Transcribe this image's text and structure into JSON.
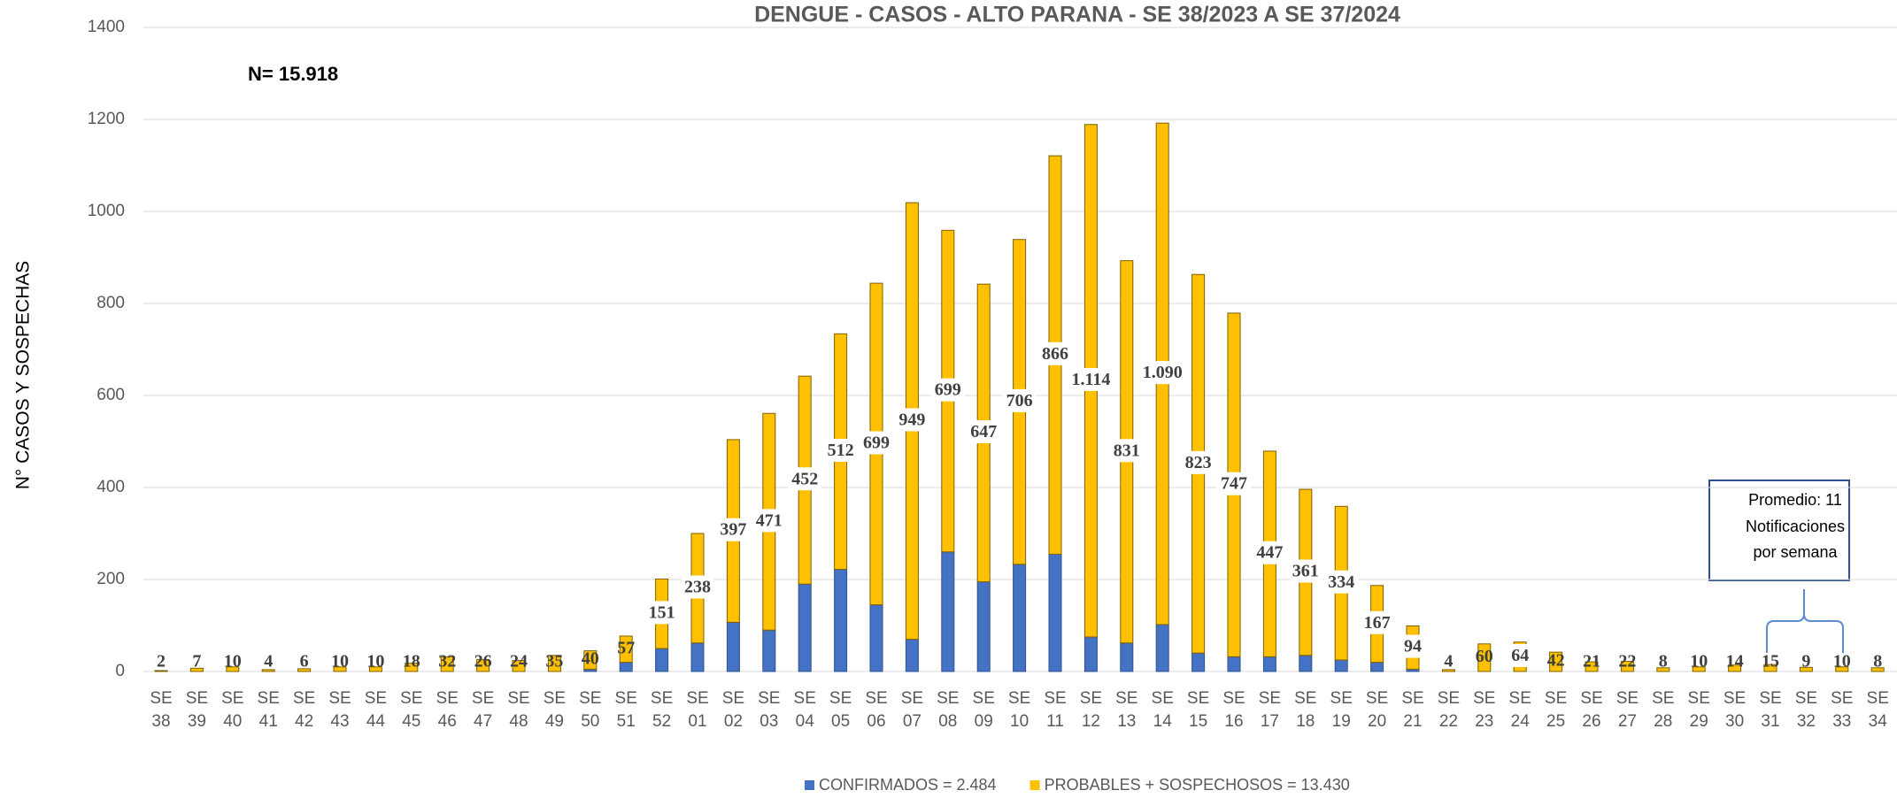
{
  "chart_data": {
    "type": "stacked_bar",
    "title": "DENGUE - CASOS - ALTO PARANA - SE 38/2023 A SE 37/2024",
    "y_label": "N° CASOS Y SOSPECHAS",
    "annotations": [
      "N= 15.918",
      "Promedio:  11",
      "Notificaciones",
      "por semana"
    ],
    "categories": [
      "SE 38",
      "SE 39",
      "SE 40",
      "SE 41",
      "SE 42",
      "SE 43",
      "SE 44",
      "SE 45",
      "SE 46",
      "SE 47",
      "SE 48",
      "SE 49",
      "SE 50",
      "SE 51",
      "SE 52",
      "SE 01",
      "SE 02",
      "SE 03",
      "SE 04",
      "SE 05",
      "SE 06",
      "SE 07",
      "SE 08",
      "SE 09",
      "SE 10",
      "SE 11",
      "SE 12",
      "SE 13",
      "SE 14",
      "SE 15",
      "SE 16",
      "SE 17",
      "SE 18",
      "SE 19",
      "SE 20",
      "SE 21",
      "SE 22",
      "SE 23",
      "SE 24",
      "SE 25",
      "SE 26",
      "SE 27",
      "SE 28",
      "SE 29",
      "SE 30",
      "SE 31",
      "SE 32",
      "SE 33",
      "SE 34"
    ],
    "series": [
      {
        "name": "CONFIRMADOS = 2.484",
        "color": "#4472c4",
        "values": [
          0,
          0,
          0,
          0,
          0,
          0,
          0,
          0,
          0,
          0,
          0,
          0,
          5,
          20,
          50,
          62,
          107,
          90,
          190,
          222,
          145,
          70,
          260,
          195,
          233,
          255,
          75,
          62,
          102,
          40,
          32,
          32,
          35,
          25,
          20,
          5,
          0,
          0,
          0,
          0,
          0,
          0,
          0,
          0,
          0,
          0,
          0,
          0,
          0
        ]
      },
      {
        "name": "PROBABLES + SOSPECHOSOS = 13.430",
        "color": "#ffc000",
        "values": [
          2,
          7,
          10,
          4,
          6,
          10,
          10,
          18,
          32,
          26,
          24,
          35,
          40,
          57,
          151,
          238,
          397,
          471,
          452,
          512,
          699,
          949,
          699,
          647,
          706,
          866,
          1114,
          831,
          1090,
          823,
          747,
          447,
          361,
          334,
          167,
          94,
          4,
          60,
          64,
          42,
          21,
          22,
          8,
          10,
          14,
          15,
          9,
          10,
          8
        ],
        "value_labels": [
          "2",
          "7",
          "10",
          "4",
          "6",
          "10",
          "10",
          "18",
          "32",
          "26",
          "24",
          "35",
          "40",
          "57",
          "151",
          "238",
          "397",
          "471",
          "452",
          "512",
          "699",
          "949",
          "699",
          "647",
          "706",
          "866",
          "1.114",
          "831",
          "1.090",
          "823",
          "747",
          "447",
          "361",
          "334",
          "167",
          "94",
          "4",
          "60",
          "64",
          "42",
          "21",
          "22",
          "8",
          "10",
          "14",
          "15",
          "9",
          "10",
          "8"
        ]
      }
    ],
    "ylim": [
      0,
      1400
    ],
    "yticks": [
      0,
      200,
      400,
      600,
      800,
      1000,
      1200,
      1400
    ],
    "grid": true
  }
}
